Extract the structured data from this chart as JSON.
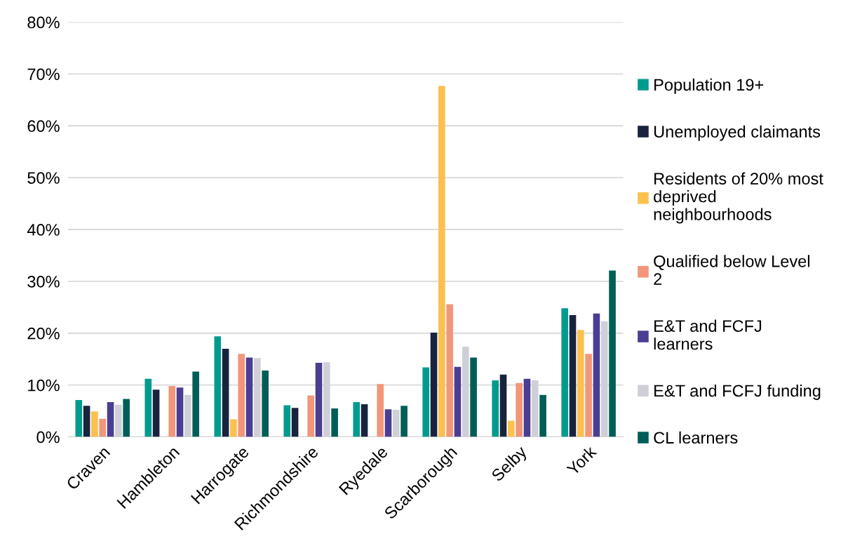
{
  "chart_data": {
    "type": "bar",
    "categories": [
      "Craven",
      "Hambleton",
      "Harrogate",
      "Richmondshire",
      "Ryedale",
      "Scarborough",
      "Selby",
      "York"
    ],
    "series": [
      {
        "name": "Population 19+",
        "color": "#009b8e",
        "values": [
          7.1,
          11.2,
          19.4,
          6.1,
          6.7,
          13.4,
          10.9,
          24.8
        ]
      },
      {
        "name": "Unemployed claimants",
        "color": "#18243e",
        "values": [
          6.0,
          9.1,
          17.0,
          5.6,
          6.3,
          20.1,
          12.0,
          23.5
        ]
      },
      {
        "name": "Residents of 20% most\ndeprived\nneighbourhoods",
        "color": "#fbc04e",
        "values": [
          4.9,
          null,
          3.4,
          null,
          null,
          67.7,
          3.1,
          20.6
        ]
      },
      {
        "name": "Qualified below Level\n2",
        "color": "#f2967a",
        "values": [
          3.5,
          9.8,
          16.0,
          8.0,
          10.2,
          25.6,
          10.4,
          16.0
        ]
      },
      {
        "name": "E&T and FCFJ\nlearners",
        "color": "#4a3e92",
        "values": [
          6.7,
          9.5,
          15.3,
          14.3,
          5.3,
          13.5,
          11.2,
          23.8
        ]
      },
      {
        "name": "E&T and FCFJ funding",
        "color": "#cfcfd7",
        "values": [
          6.2,
          8.1,
          15.2,
          14.4,
          5.2,
          17.4,
          10.9,
          22.3
        ]
      },
      {
        "name": "CL learners",
        "color": "#005e57",
        "values": [
          7.3,
          12.6,
          12.8,
          5.5,
          6.0,
          15.3,
          8.1,
          32.1
        ]
      }
    ],
    "ylim": [
      0,
      80
    ],
    "yticks": [
      {
        "value": 0,
        "label": "0%"
      },
      {
        "value": 10,
        "label": "10%"
      },
      {
        "value": 20,
        "label": "20%"
      },
      {
        "value": 30,
        "label": "30%"
      },
      {
        "value": 40,
        "label": "40%"
      },
      {
        "value": 50,
        "label": "50%"
      },
      {
        "value": 60,
        "label": "60%"
      },
      {
        "value": 70,
        "label": "70%"
      },
      {
        "value": 80,
        "label": "80%"
      }
    ],
    "grid": "y",
    "legend": "right"
  }
}
